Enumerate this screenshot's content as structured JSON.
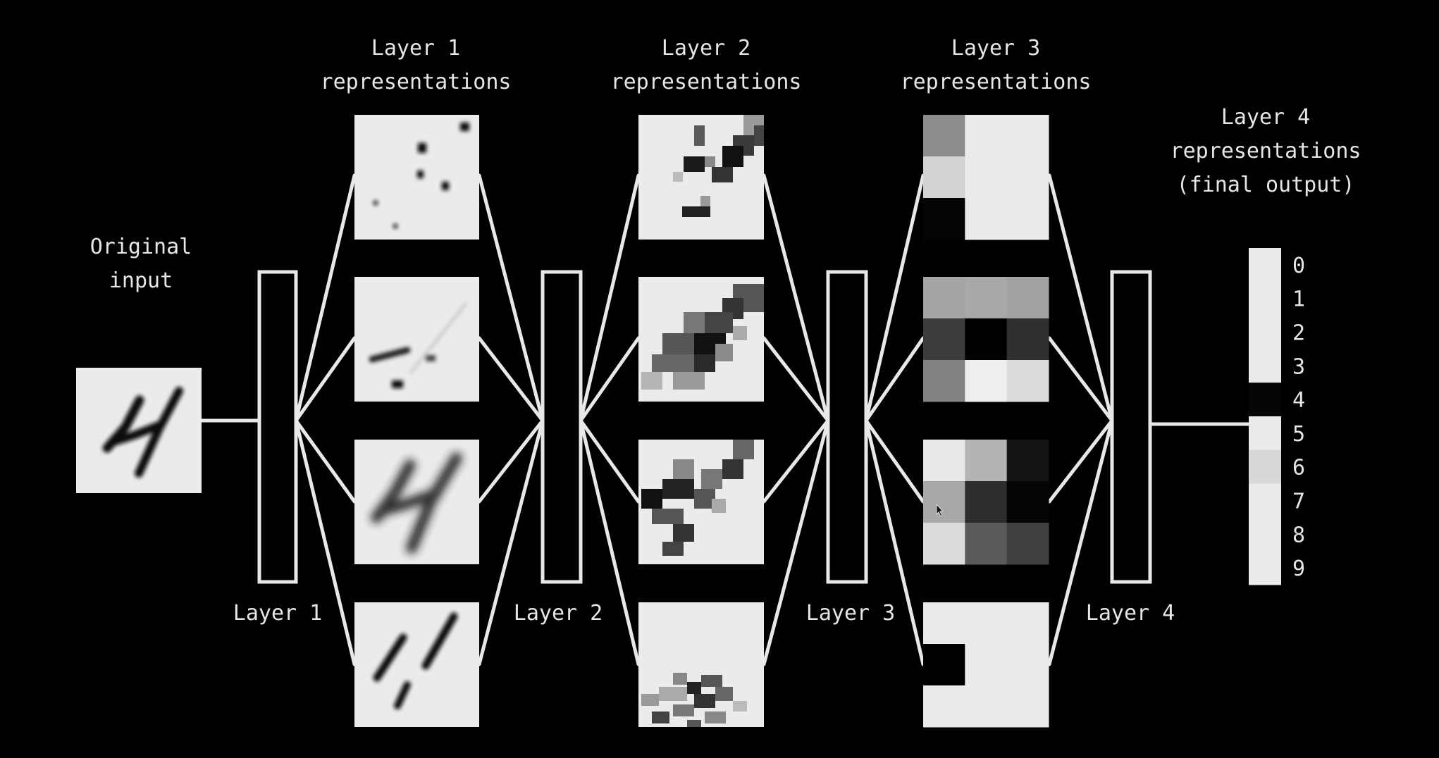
{
  "labels": {
    "original_input": [
      "Original",
      "input"
    ],
    "layer1_repr": [
      "Layer 1",
      "representations"
    ],
    "layer2_repr": [
      "Layer 2",
      "representations"
    ],
    "layer3_repr": [
      "Layer 3",
      "representations"
    ],
    "layer4_repr": [
      "Layer 4",
      "representations",
      "(final output)"
    ],
    "layer1": "Layer 1",
    "layer2": "Layer 2",
    "layer3": "Layer 3",
    "layer4": "Layer 4"
  },
  "output": {
    "digits": [
      "0",
      "1",
      "2",
      "3",
      "4",
      "5",
      "6",
      "7",
      "8",
      "9"
    ],
    "activations": [
      "#ebebeb",
      "#ebebeb",
      "#ebebeb",
      "#ebebeb",
      "#050505",
      "#ebebeb",
      "#d8d8d8",
      "#ebebeb",
      "#ebebeb",
      "#ebebeb"
    ]
  },
  "layer3_maps": [
    [
      "#8c8c8c",
      "#ebebeb",
      "#ebebeb",
      "#d2d2d2",
      "#ebebeb",
      "#ebebeb",
      "#050505",
      "#ebebeb",
      "#ebebeb"
    ],
    [
      "#a5a5a5",
      "#a8a8a8",
      "#a2a2a2",
      "#3c3c3c",
      "#000000",
      "#303030",
      "#828282",
      "#eeeeee",
      "#dcdcdc"
    ],
    [
      "#e8e8e8",
      "#b4b4b4",
      "#141414",
      "#a8a8a8",
      "#2d2d2d",
      "#050505",
      "#dcdcdc",
      "#5a5a5a",
      "#404040"
    ],
    [
      "#ebebeb",
      "#ebebeb",
      "#ebebeb",
      "#000000",
      "#ebebeb",
      "#ebebeb",
      "#ebebeb",
      "#ebebeb",
      "#ebebeb"
    ]
  ]
}
